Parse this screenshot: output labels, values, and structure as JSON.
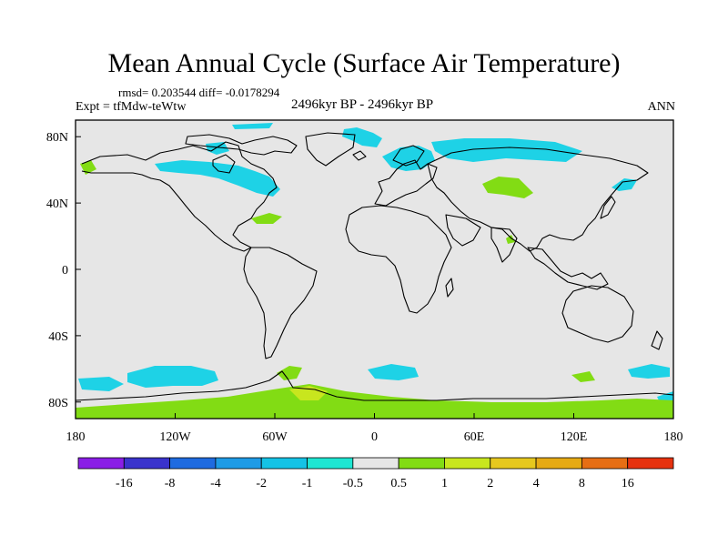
{
  "title": "Mean Annual Cycle (Surface Air Temperature)",
  "stats": "rmsd= 0.203544 diff= -0.0178294",
  "experiment": "Expt = tfMdw-teWtw",
  "period": "2496kyr BP - 2496kyr BP",
  "season": "ANN",
  "map": {
    "projection": "cylindrical equidistant",
    "lon_range": [
      -180,
      180
    ],
    "lat_range": [
      -90,
      90
    ],
    "x_ticks": [
      {
        "value": -180,
        "label": "180"
      },
      {
        "value": -120,
        "label": "120W"
      },
      {
        "value": -60,
        "label": "60W"
      },
      {
        "value": 0,
        "label": "0"
      },
      {
        "value": 60,
        "label": "60E"
      },
      {
        "value": 120,
        "label": "120E"
      },
      {
        "value": 180,
        "label": "180"
      }
    ],
    "y_ticks": [
      {
        "value": 80,
        "label": "80N"
      },
      {
        "value": 40,
        "label": "40N"
      },
      {
        "value": 0,
        "label": "0"
      },
      {
        "value": -40,
        "label": "40S"
      },
      {
        "value": -80,
        "label": "80S"
      }
    ],
    "background_color": "#e6e6e6",
    "coastline_color": "#000000"
  },
  "colorbar": {
    "labels": [
      "-16",
      "-8",
      "-4",
      "-2",
      "-1",
      "-0.5",
      "0.5",
      "1",
      "2",
      "4",
      "8",
      "16"
    ],
    "colors": [
      "#8a1ee6",
      "#3a33cc",
      "#1f6be0",
      "#1e9be6",
      "#14c3e6",
      "#1ee6d2",
      "#e6e6e6",
      "#82dc14",
      "#c8e61e",
      "#e6c81e",
      "#e6aa14",
      "#e66e14",
      "#e6320f"
    ]
  },
  "anomaly_regions": [
    {
      "name": "greenland-cool",
      "class": "-1",
      "color": "#1ed2e6"
    },
    {
      "name": "north-america-cool",
      "class": "-1",
      "color": "#1ed2e6"
    },
    {
      "name": "hudson-cool",
      "class": "-1",
      "color": "#1ed2e6"
    },
    {
      "name": "alaska-warm",
      "class": "0.5",
      "color": "#82dc14"
    },
    {
      "name": "atlantic-warm",
      "class": "0.5",
      "color": "#82dc14"
    },
    {
      "name": "scandinavia-cool",
      "class": "-1",
      "color": "#1ed2e6"
    },
    {
      "name": "siberia-cool",
      "class": "-1",
      "color": "#1ed2e6"
    },
    {
      "name": "central-asia-warm",
      "class": "0.5",
      "color": "#82dc14"
    },
    {
      "name": "bering-cool",
      "class": "-1",
      "color": "#1ed2e6"
    },
    {
      "name": "southern-ocean-cool",
      "class": "-1",
      "color": "#1ed2e6"
    },
    {
      "name": "antarctic-warm",
      "class": "0.5",
      "color": "#82dc14"
    },
    {
      "name": "weddell-warm",
      "class": "1",
      "color": "#c8e61e"
    }
  ]
}
